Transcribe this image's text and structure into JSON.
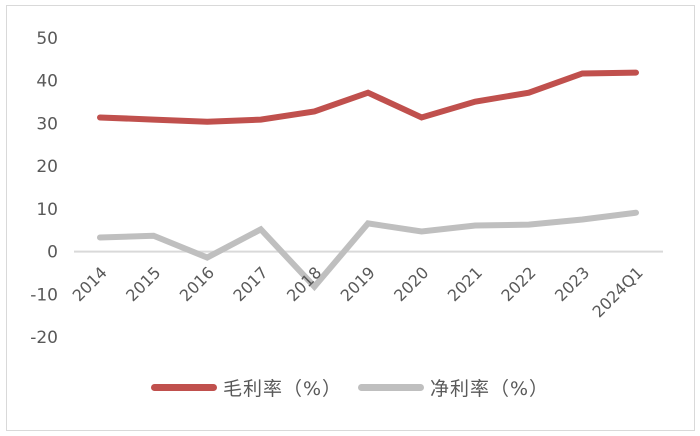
{
  "chart_data": {
    "type": "line",
    "title": "",
    "xlabel": "",
    "ylabel": "",
    "categories": [
      "2014",
      "2015",
      "2016",
      "2017",
      "2018",
      "2019",
      "2020",
      "2021",
      "2022",
      "2023",
      "2024Q1"
    ],
    "series": [
      {
        "name": "毛利率（%）",
        "color": "#c0504d",
        "values": [
          31.4,
          30.9,
          30.4,
          30.9,
          32.8,
          37.2,
          31.4,
          35.1,
          37.2,
          41.7,
          41.9
        ]
      },
      {
        "name": "净利率（%）",
        "color": "#bfbfbf",
        "values": [
          3.3,
          3.7,
          -1.4,
          5.2,
          -8.2,
          6.6,
          4.7,
          6.1,
          6.3,
          7.5,
          9.1
        ]
      }
    ],
    "ylim": [
      -20,
      50
    ],
    "yticks": [
      50,
      40,
      30,
      20,
      10,
      0,
      -10,
      -20
    ],
    "grid": false,
    "zero_line": true,
    "legend_position": "bottom"
  },
  "legend": {
    "items": [
      {
        "label": "毛利率（%）",
        "color": "#c0504d"
      },
      {
        "label": "净利率（%）",
        "color": "#bfbfbf"
      }
    ]
  }
}
